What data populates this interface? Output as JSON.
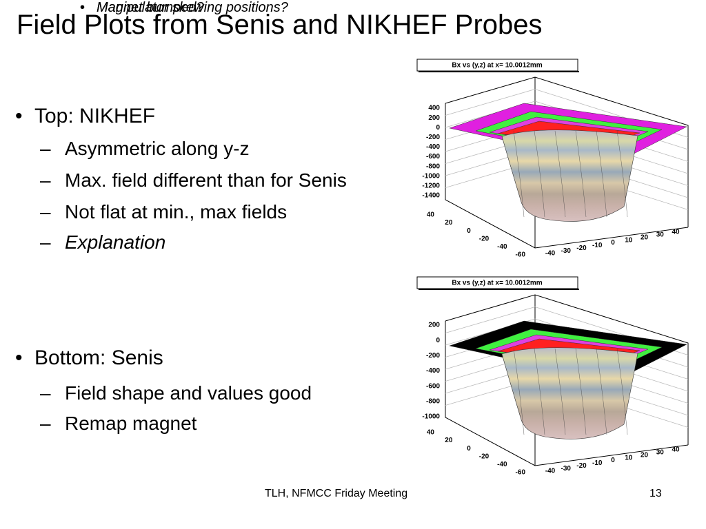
{
  "title": "Field Plots from Senis and NIKHEF Probes",
  "bullets": [
    {
      "text": "Top:  NIKHEF",
      "sub": [
        {
          "text": "Asymmetric along y-z"
        },
        {
          "text": "Max. field different than for Senis"
        },
        {
          "text": "Not flat at min., max fields"
        },
        {
          "text": "Explanation",
          "sub": [
            "Magnet bumped?",
            "Manipulator skewing positions?"
          ]
        }
      ]
    },
    {
      "text": "Bottom:  Senis",
      "sub": [
        {
          "text": "Field shape and values good"
        },
        {
          "text": "Remap magnet"
        }
      ]
    }
  ],
  "plots": [
    {
      "title": "Bx vs (y,z) at x= 10.0012mm",
      "z_ticks": [
        "400",
        "200",
        "0",
        "-200",
        "-400",
        "-600",
        "-800",
        "-1000",
        "-1200",
        "-1400"
      ],
      "y_ticks": [
        "40",
        "20",
        "0",
        "-20",
        "-40",
        "-60"
      ],
      "x_ticks": [
        "-40",
        "-30",
        "-20",
        "-10",
        "0",
        "10",
        "20",
        "30",
        "40"
      ]
    },
    {
      "title": "Bx vs (y,z) at x= 10.0012mm",
      "z_ticks": [
        "200",
        "0",
        "-200",
        "-400",
        "-600",
        "-800",
        "-1000"
      ],
      "y_ticks": [
        "40",
        "20",
        "0",
        "-20",
        "-40",
        "-60"
      ],
      "x_ticks": [
        "-40",
        "-30",
        "-20",
        "-10",
        "0",
        "10",
        "20",
        "30",
        "40"
      ]
    }
  ],
  "footer": "TLH, NFMCC Friday Meeting",
  "page_number": "13"
}
